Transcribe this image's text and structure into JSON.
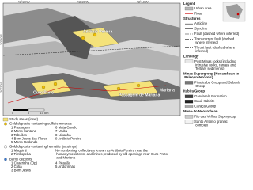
{
  "map": {
    "lon_labels": [
      "43°30'W",
      "43°20'W",
      "43°10'W"
    ],
    "lat_labels": [
      "20°10'S",
      "20°20'S"
    ],
    "places": [
      "Antônio Pereira",
      "Ouro Preto",
      "Passagem de Mariana",
      "Mariana"
    ],
    "scale": [
      "0",
      "5",
      "10 km"
    ]
  },
  "legend": {
    "title": "Legend",
    "items": [
      {
        "label": "Urban area"
      },
      {
        "label": "Road"
      },
      {
        "label": "Structures",
        "heading": true
      },
      {
        "label": "Anticline"
      },
      {
        "label": "Syncline"
      },
      {
        "label": "Fault (dashed where inferred)"
      },
      {
        "label": "Transcurrent fault (dashed where inferred)"
      },
      {
        "label": "Thrust fault (dashed where inferred)"
      },
      {
        "label": "Lithology",
        "heading": true
      },
      {
        "label": "Post-Minas rocks (including intrusive rocks, ranges and Tertiary sediments)"
      },
      {
        "label": "Minas Supergroup (Neoarchean to Paleoproterozoic)",
        "heading": true
      },
      {
        "label": "Piracicaba Group and Sabará Group"
      },
      {
        "label": "Itabira Group",
        "heading": true
      },
      {
        "label": "Gandarela Formation"
      },
      {
        "label": "Cauê Itabirite"
      },
      {
        "label": "Caraça Group"
      },
      {
        "label": "Meso- to Neoarchean",
        "heading": true
      },
      {
        "label": "Rio das Velhas Supergroup"
      },
      {
        "label": "Santo Antônio granitic complex"
      }
    ]
  },
  "deposits": {
    "study": "Study areas (inset)",
    "sulfide_title": "Gold deposits containing sulfidic minerals",
    "sulfide": [
      "1 Passagem",
      "2 Morro Santana",
      "3 Tabuões",
      "4 Bom Jesus das Flores",
      "5 Morro Redondo"
    ],
    "sulfide_b": [
      "6 Mata Cavalo",
      "7 Urubu",
      "8 Ninanha",
      "9 Antônio Pereira"
    ],
    "hematite_title": "Gold deposits containing hematite (jacutinga)",
    "hematite": [
      "1 Maquiné",
      "2 Timbopeba"
    ],
    "hematite_note": "No numbering: collectively known as Antônio Pereira near the homonymous town, and mines produced by old openings near Ouro Preto and Mariana",
    "barite_title": "Barite deposits",
    "barite": [
      "1 Chacrinha (Op)",
      "2 Cotia",
      "3 Bom Jesus"
    ],
    "barite_b": [
      "4 Piçadão",
      "5 Andorinhas"
    ]
  }
}
